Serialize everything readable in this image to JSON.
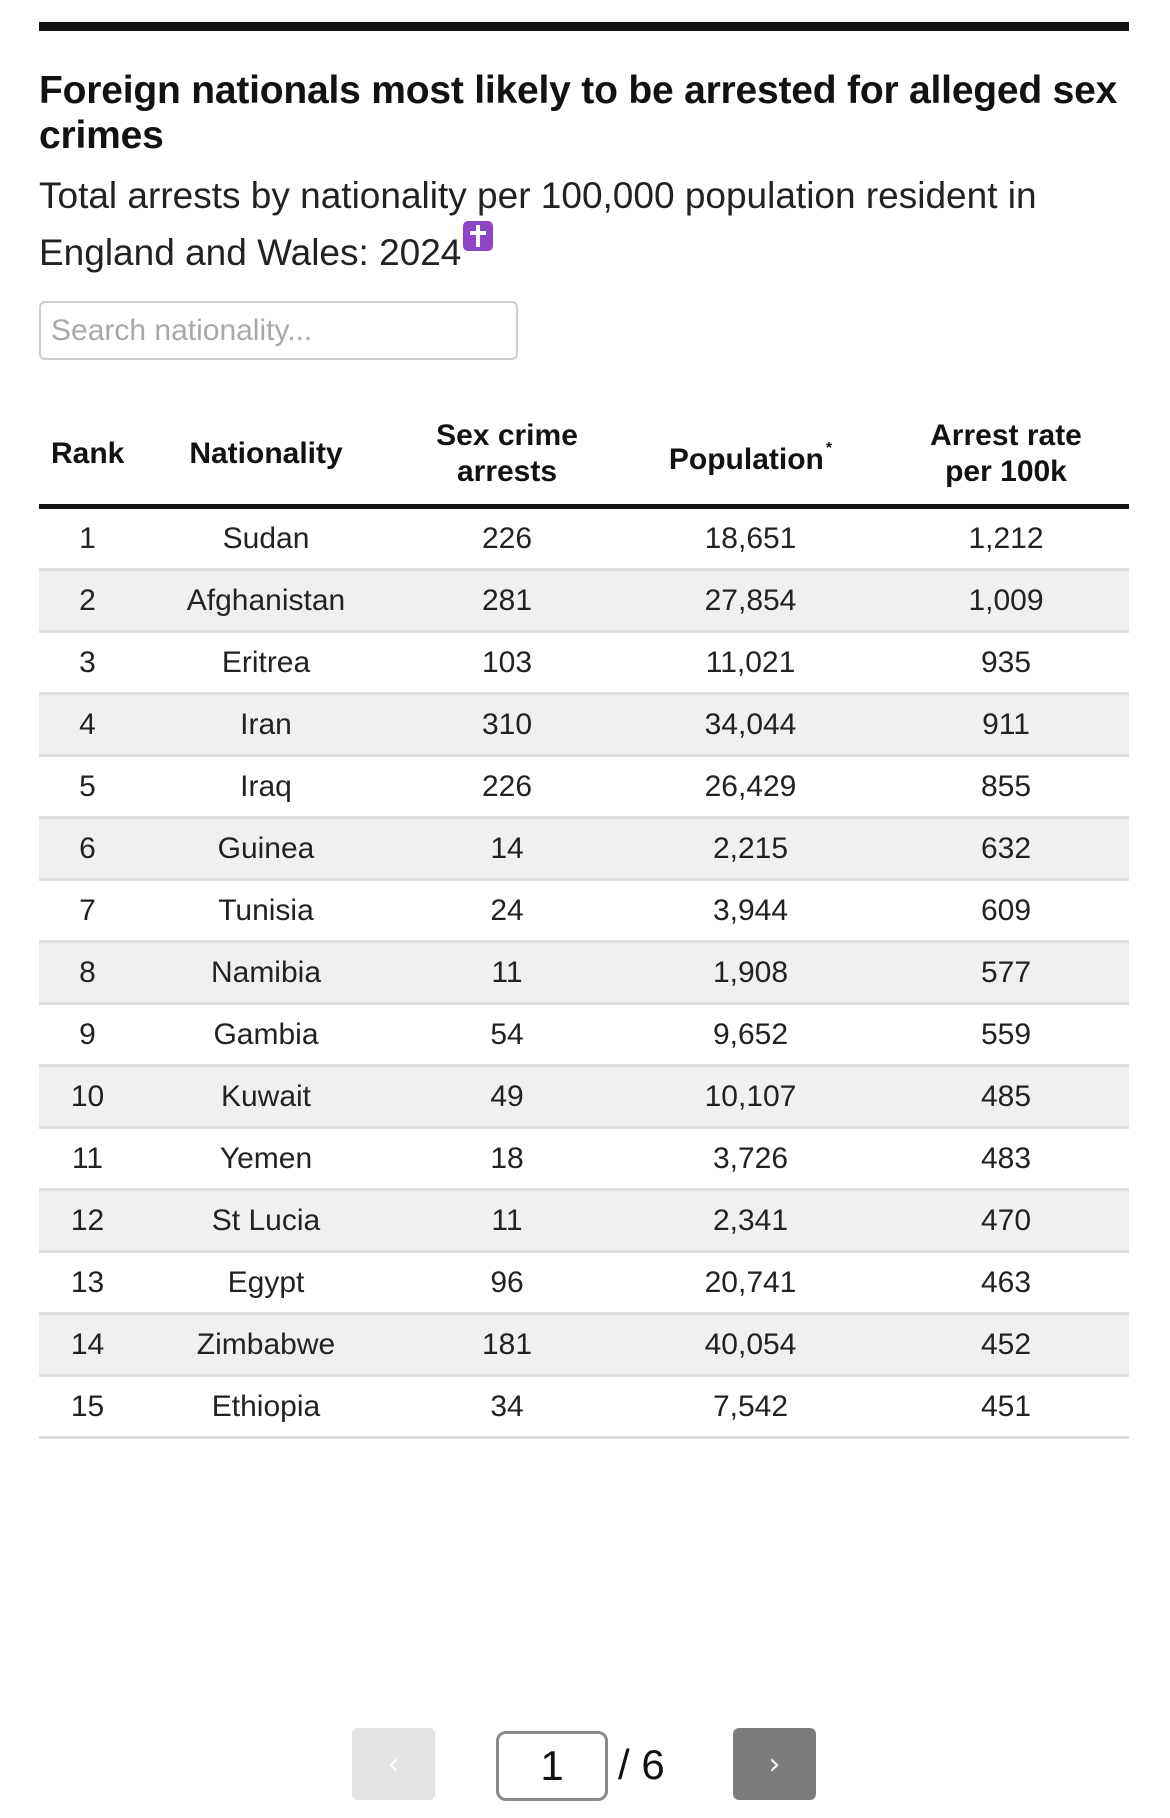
{
  "header": {
    "title": "Foreign nationals most likely to be arrested for alleged sex crimes",
    "subtitle": "Total arrests by nationality per 100,000 population resident in England and Wales: 2024",
    "note_icon": "latin-cross-icon",
    "note_icon_color": "#8e44c7"
  },
  "search": {
    "placeholder": "Search nationality...",
    "value": ""
  },
  "table": {
    "columns": {
      "rank": "Rank",
      "nationality": "Nationality",
      "arrests": "Sex crime arrests",
      "population": "Population",
      "population_note": "*",
      "rate": "Arrest rate per 100k"
    },
    "rows": [
      {
        "rank": "1",
        "nationality": "Sudan",
        "arrests": "226",
        "population": "18,651",
        "rate": "1,212"
      },
      {
        "rank": "2",
        "nationality": "Afghanistan",
        "arrests": "281",
        "population": "27,854",
        "rate": "1,009"
      },
      {
        "rank": "3",
        "nationality": "Eritrea",
        "arrests": "103",
        "population": "11,021",
        "rate": "935"
      },
      {
        "rank": "4",
        "nationality": "Iran",
        "arrests": "310",
        "population": "34,044",
        "rate": "911"
      },
      {
        "rank": "5",
        "nationality": "Iraq",
        "arrests": "226",
        "population": "26,429",
        "rate": "855"
      },
      {
        "rank": "6",
        "nationality": "Guinea",
        "arrests": "14",
        "population": "2,215",
        "rate": "632"
      },
      {
        "rank": "7",
        "nationality": "Tunisia",
        "arrests": "24",
        "population": "3,944",
        "rate": "609"
      },
      {
        "rank": "8",
        "nationality": "Namibia",
        "arrests": "11",
        "population": "1,908",
        "rate": "577"
      },
      {
        "rank": "9",
        "nationality": "Gambia",
        "arrests": "54",
        "population": "9,652",
        "rate": "559"
      },
      {
        "rank": "10",
        "nationality": "Kuwait",
        "arrests": "49",
        "population": "10,107",
        "rate": "485"
      },
      {
        "rank": "11",
        "nationality": "Yemen",
        "arrests": "18",
        "population": "3,726",
        "rate": "483"
      },
      {
        "rank": "12",
        "nationality": "St Lucia",
        "arrests": "11",
        "population": "2,341",
        "rate": "470"
      },
      {
        "rank": "13",
        "nationality": "Egypt",
        "arrests": "96",
        "population": "20,741",
        "rate": "463"
      },
      {
        "rank": "14",
        "nationality": "Zimbabwe",
        "arrests": "181",
        "population": "40,054",
        "rate": "452"
      },
      {
        "rank": "15",
        "nationality": "Ethiopia",
        "arrests": "34",
        "population": "7,542",
        "rate": "451"
      }
    ]
  },
  "pagination": {
    "prev_label": "‹",
    "next_label": "›",
    "current_page": "1",
    "total_label": "/ 6"
  }
}
